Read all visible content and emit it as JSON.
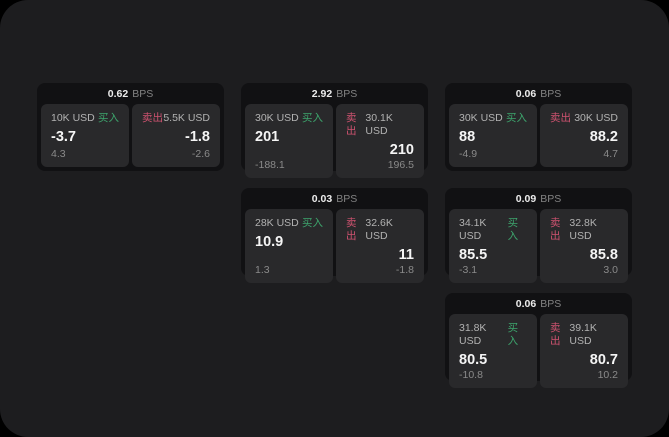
{
  "labels": {
    "unit": "BPS",
    "buy": "买入",
    "sell": "卖出"
  },
  "colors": {
    "window_bg": "#1d1d1f",
    "card_bg": "#111113",
    "panel_bg": "#29292b",
    "buy_green": "#3da56d",
    "sell_red": "#cf5270"
  },
  "cards": [
    {
      "bps": "0.62",
      "buy": {
        "amount": "10K USD",
        "value": "-3.7",
        "delta": "4.3"
      },
      "sell": {
        "amount": "5.5K USD",
        "value": "-1.8",
        "delta": "-2.6"
      }
    },
    {
      "bps": "2.92",
      "buy": {
        "amount": "30K USD",
        "value": "201",
        "delta": "-188.1"
      },
      "sell": {
        "amount": "30.1K USD",
        "value": "210",
        "delta": "196.5"
      }
    },
    {
      "bps": "0.06",
      "buy": {
        "amount": "30K USD",
        "value": "88",
        "delta": "-4.9"
      },
      "sell": {
        "amount": "30K USD",
        "value": "88.2",
        "delta": "4.7"
      }
    },
    {
      "bps": "0.03",
      "buy": {
        "amount": "28K USD",
        "value": "10.9",
        "delta": "1.3"
      },
      "sell": {
        "amount": "32.6K USD",
        "value": "11",
        "delta": "-1.8"
      }
    },
    {
      "bps": "0.09",
      "buy": {
        "amount": "34.1K USD",
        "value": "85.5",
        "delta": "-3.1"
      },
      "sell": {
        "amount": "32.8K USD",
        "value": "85.8",
        "delta": "3.0"
      }
    },
    {
      "bps": "0.06",
      "buy": {
        "amount": "31.8K USD",
        "value": "80.5",
        "delta": "-10.8"
      },
      "sell": {
        "amount": "39.1K USD",
        "value": "80.7",
        "delta": "10.2"
      }
    }
  ]
}
